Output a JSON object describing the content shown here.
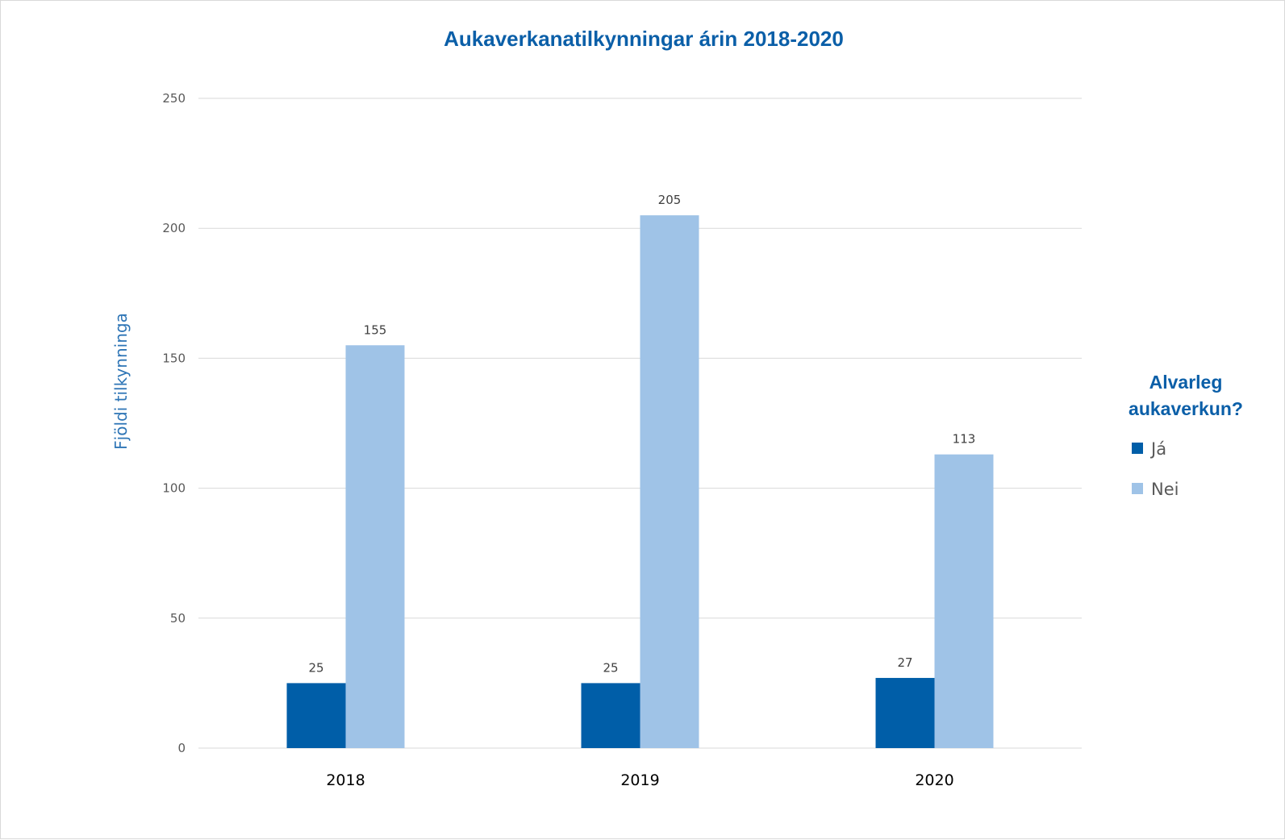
{
  "chart_data": {
    "type": "bar",
    "title": "Aukaverkanatilkynningar árin 2018-2020",
    "ylabel": "Fjöldi tilkynninga",
    "xlabel": "",
    "categories": [
      "2018",
      "2019",
      "2020"
    ],
    "series": [
      {
        "name": "Já",
        "values": [
          25,
          25,
          27
        ],
        "color": "#005ea8"
      },
      {
        "name": "Nei",
        "values": [
          155,
          205,
          113
        ],
        "color": "#9fc3e7"
      }
    ],
    "ylim": [
      0,
      250
    ],
    "yticks": [
      0,
      50,
      100,
      150,
      200,
      250
    ],
    "grid": true,
    "legend": {
      "title": "Alvarleg aukaverkun?",
      "title_lines": [
        "Alvarleg",
        "aukaverkun?"
      ],
      "position": "right"
    },
    "title_color": "#0b5fa8",
    "axis_label_color": "#2e75b6",
    "gridline_color": "#d9d9d9"
  }
}
